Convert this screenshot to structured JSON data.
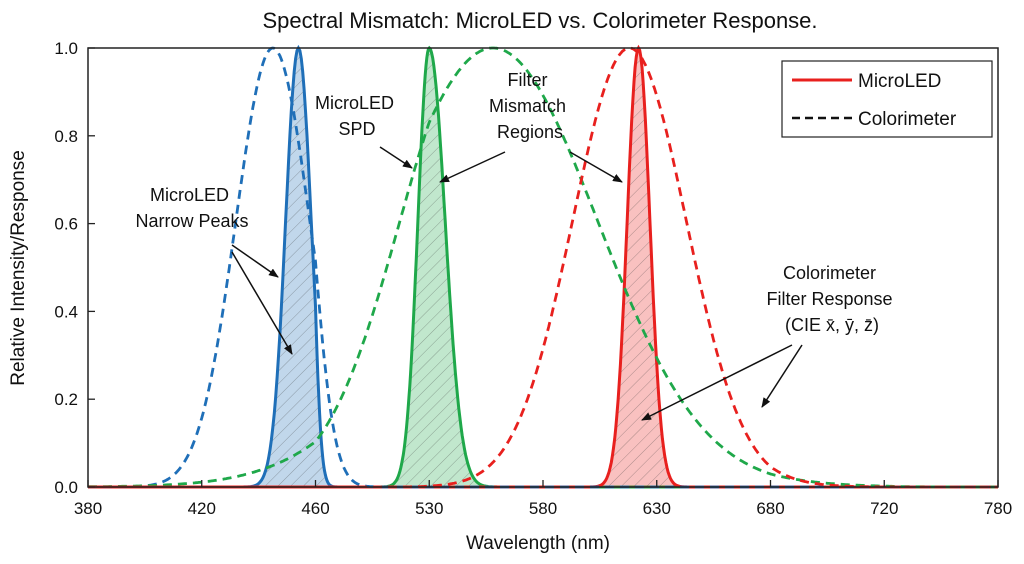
{
  "chart_data": {
    "type": "line",
    "title": "Spectral Mismatch: MicroLED vs. Colorimeter Response.",
    "xlabel": "Wavelength (nm)",
    "ylabel": "Relative Intensity/Response",
    "x_ticks": [
      380,
      420,
      460,
      530,
      580,
      630,
      680,
      720,
      780
    ],
    "y_ticks": [
      0,
      0.2,
      0.4,
      0.6,
      0.8,
      1.0
    ],
    "xlim": [
      380,
      780
    ],
    "ylim": [
      0,
      1.0
    ],
    "grid": false,
    "legend_position": "top-right",
    "legend": [
      {
        "label": "MicroLED",
        "style": "solid",
        "color": "#e8201e"
      },
      {
        "label": "Colorimeter",
        "style": "dashed",
        "color": "#111111"
      }
    ],
    "series": [
      {
        "group": "MicroLED",
        "style": "solid",
        "filled": true,
        "color": "#1f6fb8",
        "peak_nm": 454,
        "sigma_nm": 4.5,
        "peak_value": 1.0
      },
      {
        "group": "MicroLED",
        "style": "solid",
        "filled": true,
        "color": "#1fa84a",
        "peak_nm": 530,
        "sigma_nm": 7,
        "peak_value": 1.0
      },
      {
        "group": "MicroLED",
        "style": "solid",
        "filled": true,
        "color": "#e8201e",
        "peak_nm": 622,
        "sigma_nm": 5,
        "peak_value": 1.0
      },
      {
        "group": "Colorimeter",
        "style": "dashed",
        "color": "#1f6fb8",
        "peak_nm": 445,
        "sigma_nm": 13,
        "peak_value": 1.0
      },
      {
        "group": "Colorimeter",
        "style": "dashed",
        "color": "#1fa84a",
        "peak_nm": 558,
        "sigma_nm": 46,
        "peak_value": 1.0
      },
      {
        "group": "Colorimeter",
        "style": "dashed",
        "color": "#e8201e",
        "peak_nm": 618,
        "sigma_nm": 25,
        "peak_value": 1.0
      }
    ],
    "annotations": [
      {
        "lines": [
          "MicroLED",
          "Narrow Peaks"
        ]
      },
      {
        "lines": [
          "MicroLED",
          "SPD"
        ]
      },
      {
        "lines": [
          "Filter",
          "Mismatch",
          "Regions"
        ]
      },
      {
        "lines": [
          "Colorimeter",
          "Filter Response",
          "(CIE x̄, ȳ, z̄)"
        ]
      }
    ]
  }
}
